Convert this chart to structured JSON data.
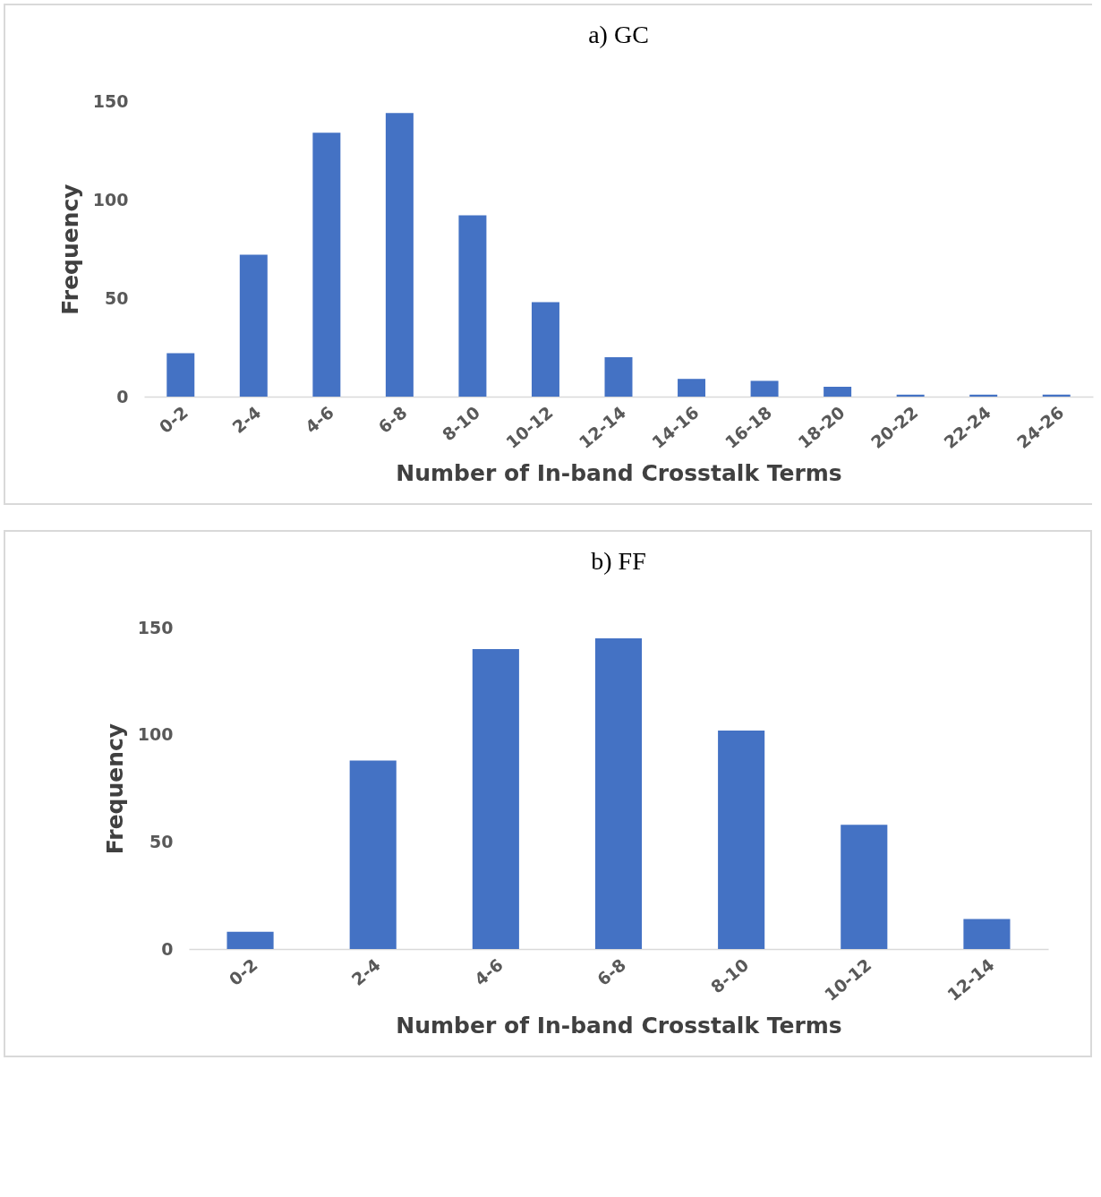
{
  "chart_data": [
    {
      "type": "bar",
      "title": "a)  GC",
      "xlabel": "Number of In-band Crosstalk Terms",
      "ylabel": "Frequency",
      "categories": [
        "0-2",
        "2-4",
        "4-6",
        "6-8",
        "8-10",
        "10-12",
        "12-14",
        "14-16",
        "16-18",
        "18-20",
        "20-22",
        "22-24",
        "24-26"
      ],
      "values": [
        22,
        72,
        134,
        144,
        92,
        48,
        20,
        9,
        8,
        5,
        1,
        1,
        1
      ],
      "color": "#4472c4",
      "ylim": [
        0,
        150
      ],
      "yticks": [
        0,
        50,
        100,
        150
      ]
    },
    {
      "type": "bar",
      "title": "b)  FF",
      "xlabel": "Number of In-band Crosstalk Terms",
      "ylabel": "Frequency",
      "categories": [
        "0-2",
        "2-4",
        "4-6",
        "6-8",
        "8-10",
        "10-12",
        "12-14"
      ],
      "values": [
        8,
        88,
        140,
        145,
        102,
        58,
        14
      ],
      "color": "#4472c4",
      "ylim": [
        0,
        150
      ],
      "yticks": [
        0,
        50,
        100,
        150
      ]
    }
  ]
}
